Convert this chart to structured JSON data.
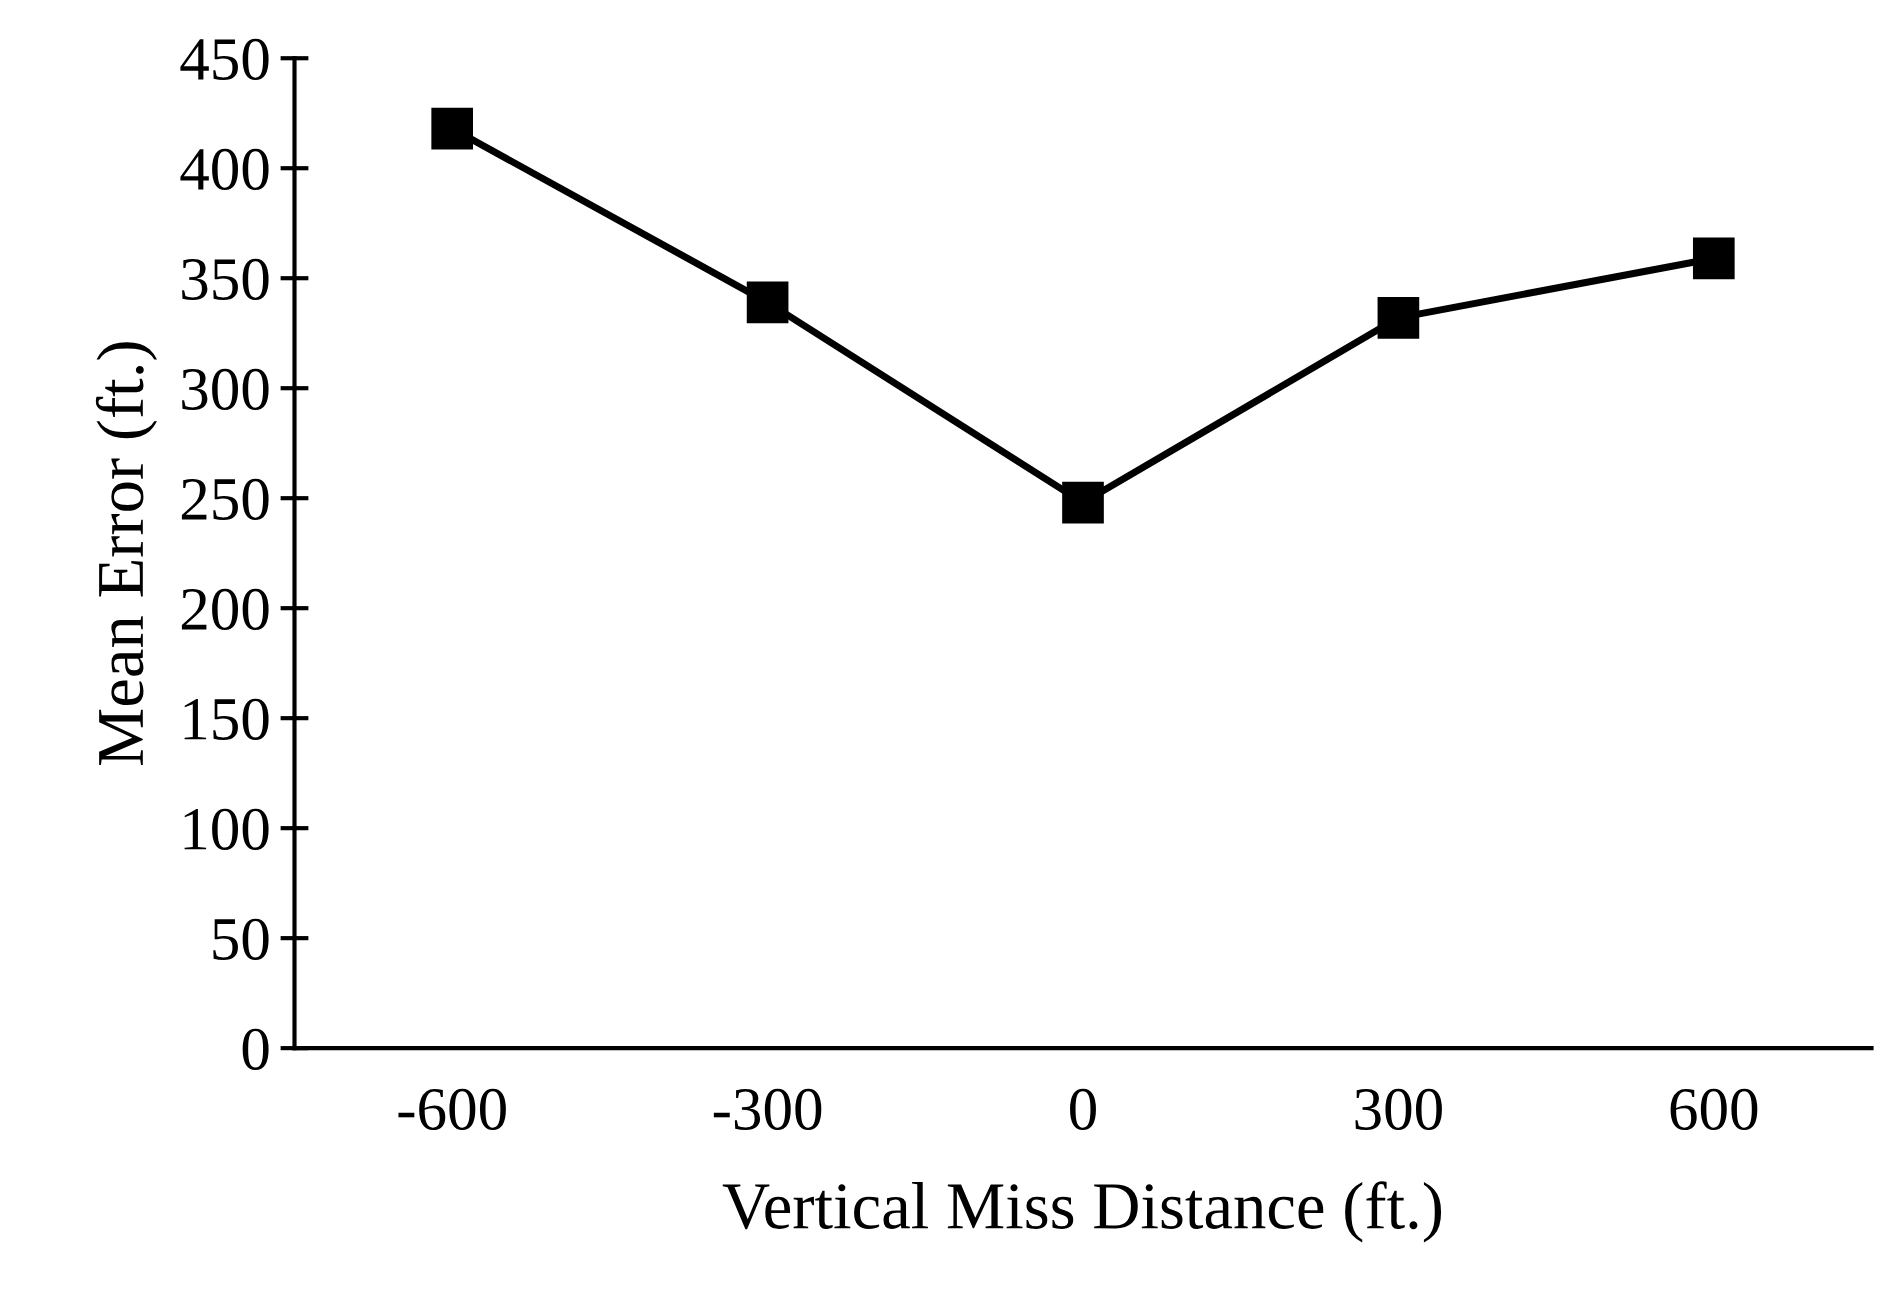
{
  "chart_data": {
    "type": "line",
    "xlabel": "Vertical Miss Distance (ft.)",
    "ylabel": "Mean Error (ft.)",
    "categories": [
      "-600",
      "-300",
      "0",
      "300",
      "600"
    ],
    "series": [
      {
        "color": "#000000",
        "values": [
          418,
          339,
          248,
          332,
          359
        ]
      }
    ],
    "ylim": [
      0,
      450
    ],
    "yticks": [
      0,
      50,
      100,
      150,
      200,
      250,
      300,
      350,
      400,
      450
    ],
    "marker": "square",
    "line_style": "solid",
    "grid": false,
    "legend": false
  }
}
